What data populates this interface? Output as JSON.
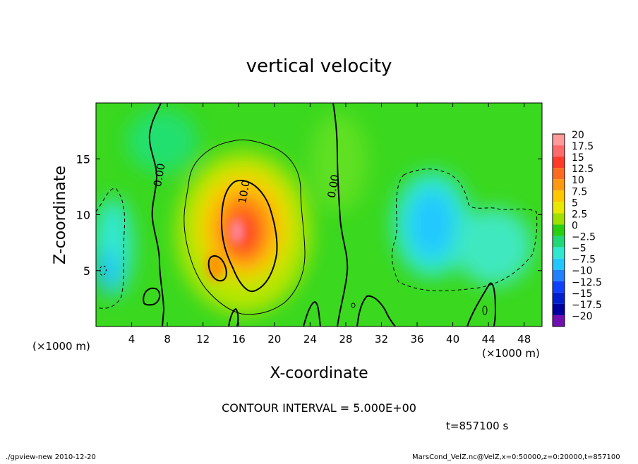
{
  "chart_data": {
    "type": "heatmap",
    "title": "vertical velocity",
    "xlabel": "X-coordinate",
    "ylabel": "Z-coordinate",
    "x_unit_left": "(×1000 m)",
    "x_unit_right": "(×1000 m)",
    "xlim": [
      0,
      50
    ],
    "ylim": [
      0,
      20
    ],
    "xticks": [
      4,
      8,
      12,
      16,
      20,
      24,
      28,
      32,
      36,
      40,
      44,
      48
    ],
    "yticks": [
      5,
      10,
      15
    ],
    "colorbar": {
      "labels": [
        "20",
        "17.5",
        "15",
        "12.5",
        "10",
        "7.5",
        "5",
        "2.5",
        "0",
        "−2.5",
        "−5",
        "−7.5",
        "−10",
        "−12.5",
        "−15",
        "−17.5",
        "−20"
      ],
      "colors": [
        "#ff9a9a",
        "#ff6a6a",
        "#ff3a2a",
        "#ff6a20",
        "#ff9a10",
        "#ffc800",
        "#e8e800",
        "#a0e000",
        "#28d010",
        "#20d878",
        "#30e8d0",
        "#20c8ff",
        "#2080ff",
        "#1040ff",
        "#0020d0",
        "#0000a0",
        "#7010b0"
      ]
    },
    "contour_labels": [
      {
        "text": "0.00",
        "x": 7.5,
        "z": 13.5
      },
      {
        "text": "10.0",
        "x": 17.0,
        "z": 12.0
      },
      {
        "text": "0.00",
        "x": 27.0,
        "z": 12.5
      }
    ],
    "contour_interval_text": "CONTOUR INTERVAL = 5.000E+00",
    "time_text": "t=857100 s"
  },
  "footer": {
    "left": "./gpview-new  2010-12-20",
    "right": "MarsCond_VelZ.nc@VelZ,x=0:50000,z=0:20000,t=857100"
  }
}
